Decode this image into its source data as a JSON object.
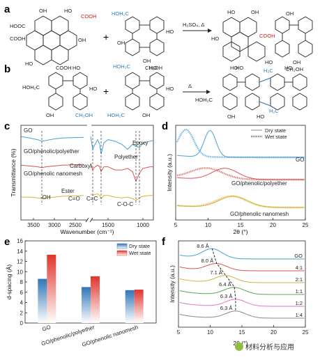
{
  "panels": {
    "a": {
      "letter": "a",
      "reaction_condition": "H₂SO₄, Δ",
      "labels": [
        "COOH",
        "HOOC",
        "OH",
        "COOH",
        "HO",
        "OH",
        "HO",
        "COOH",
        "HO",
        "OH",
        "OH",
        "CH₂OH",
        "HO",
        "OH",
        "COOH",
        "HO",
        "OH",
        "HO",
        "OH",
        "CH₂OH",
        "HO"
      ]
    },
    "b": {
      "letter": "b",
      "reaction_condition": "Δ",
      "labels": [
        "HO",
        "HOH₂C",
        "HO",
        "OH",
        "CH₂OH",
        "HOH₂C",
        "HO",
        "HO",
        "HOH₂C",
        "OH",
        "HOH₂C",
        "HO",
        "H₂C",
        "HO",
        "HOH₂C",
        "OH",
        "HO",
        "H₂C"
      ]
    }
  },
  "chart_data": [
    {
      "id": "c",
      "type": "line",
      "letter": "c",
      "xlabel": "Wavenumber (cm⁻¹)",
      "ylabel": "Transmittance (%)",
      "xlim": [
        3800,
        850
      ],
      "x_reversed": true,
      "x_ticks": [
        3500,
        3000,
        2500,
        1500,
        1000
      ],
      "x_break": [
        2300,
        1750
      ],
      "series": [
        {
          "name": "GO",
          "color": "#4a9fd8",
          "x": [
            3800,
            3600,
            3400,
            3300,
            3200,
            3000,
            2800,
            2300,
            1750,
            1720,
            1700,
            1650,
            1620,
            1600,
            1560,
            1500,
            1400,
            1300,
            1220,
            1150,
            1100,
            1050,
            1000,
            900,
            850
          ],
          "y": [
            93,
            92,
            91,
            90,
            90.5,
            91.5,
            92,
            92.5,
            93,
            85,
            87,
            91,
            88,
            82,
            89,
            91,
            90,
            88,
            85,
            88,
            87,
            86,
            89,
            90,
            90.5
          ]
        },
        {
          "name": "GO/phenolic/polyether",
          "color": "#d9534f",
          "x": [
            3800,
            3600,
            3400,
            3300,
            3200,
            3000,
            2800,
            2300,
            1750,
            1720,
            1700,
            1650,
            1620,
            1600,
            1560,
            1500,
            1400,
            1300,
            1220,
            1150,
            1100,
            1050,
            1000,
            900,
            850
          ],
          "y": [
            75,
            74.5,
            74,
            73.5,
            74,
            74.5,
            75,
            75.5,
            76,
            72,
            73.5,
            75,
            74,
            71,
            74,
            74,
            72,
            72,
            73,
            71,
            65,
            70,
            73,
            74,
            74
          ]
        },
        {
          "name": "GO/phenolic nanomesh",
          "color": "#d4b33a",
          "x": [
            3800,
            3600,
            3400,
            3300,
            3200,
            3000,
            2800,
            2300,
            1750,
            1720,
            1700,
            1650,
            1620,
            1600,
            1560,
            1500,
            1400,
            1300,
            1220,
            1150,
            1100,
            1050,
            1000,
            900,
            850
          ],
          "y": [
            55,
            55,
            54.5,
            54,
            54.5,
            55,
            55.5,
            56,
            57,
            56,
            56.5,
            57,
            56,
            54,
            56,
            56,
            55,
            54.5,
            55,
            54,
            53,
            54.5,
            55.5,
            56,
            56
          ]
        }
      ],
      "annotations": [
        "Epoxy",
        "Polyether",
        "Carboxyl",
        "Ester",
        "C=O",
        "C=C",
        "-OH",
        "C-O-C"
      ]
    },
    {
      "id": "d",
      "type": "line",
      "letter": "d",
      "xlabel": "2θ (°)",
      "ylabel": "Intensity (a.u.)",
      "xlim": [
        5,
        25
      ],
      "x_ticks": [
        5,
        10,
        15,
        20,
        25
      ],
      "legend": [
        "Dry state",
        "Wet state"
      ],
      "legend_position": "top-right",
      "series": [
        {
          "name": "GO",
          "offset": 2,
          "dry_peak": 10.3,
          "dry_width": 0.9,
          "wet_peak": 6.6,
          "wet_width": 1.2,
          "color": "#4a9fd8"
        },
        {
          "name": "GO/phenolic/polyether",
          "offset": 1,
          "dry_peak": 12.6,
          "dry_width": 2.0,
          "wet_peak": 9.7,
          "wet_width": 2.5,
          "color": "#d9534f"
        },
        {
          "name": "GO/phenolic nanomesh",
          "offset": 0,
          "dry_peak": 13.9,
          "dry_width": 2.2,
          "wet_peak": 13.6,
          "wet_width": 2.3,
          "color": "#d4b33a"
        }
      ]
    },
    {
      "id": "e",
      "type": "bar",
      "letter": "e",
      "categories": [
        "GO",
        "GO/phenolic/polyether",
        "GO/phenolic nanomesh"
      ],
      "series": [
        {
          "name": "Dry state",
          "values": [
            8.6,
            7.0,
            6.4
          ],
          "color": "#2e75b6"
        },
        {
          "name": "Wet state",
          "values": [
            13.3,
            9.1,
            6.5
          ],
          "color": "#e0342b"
        }
      ],
      "ylabel": "d-spacing (Å)",
      "ylim": [
        0,
        16
      ],
      "y_ticks": [
        0,
        2,
        4,
        6,
        8,
        10,
        12,
        14,
        16
      ],
      "legend_position": "top-right"
    },
    {
      "id": "f",
      "type": "line",
      "letter": "f",
      "xlabel": "2θ (°)",
      "ylabel": "Intensity (a.u.)",
      "xlim": [
        5,
        25
      ],
      "x_ticks": [
        5,
        10,
        15,
        20,
        25
      ],
      "series": [
        {
          "name": "GO",
          "peak": 10.3,
          "d_label": "8.6 Å",
          "color": "#4a9fd8"
        },
        {
          "name": "4:1",
          "peak": 11.0,
          "d_label": "8.0 Å",
          "color": "#d9534f"
        },
        {
          "name": "2:1",
          "peak": 12.4,
          "d_label": "7.1 Å",
          "color": "#d4b33a"
        },
        {
          "name": "1:1",
          "peak": 13.8,
          "d_label": "6.4 Å",
          "color": "#4caf50"
        },
        {
          "name": "1:2",
          "peak": 14.0,
          "d_label": "6.3 Å",
          "color": "#e377c2"
        },
        {
          "name": "1:4",
          "peak": 14.0,
          "d_label": "6.3 Å",
          "color": "#888888"
        }
      ]
    }
  ],
  "watermark": "材料分析与应用"
}
